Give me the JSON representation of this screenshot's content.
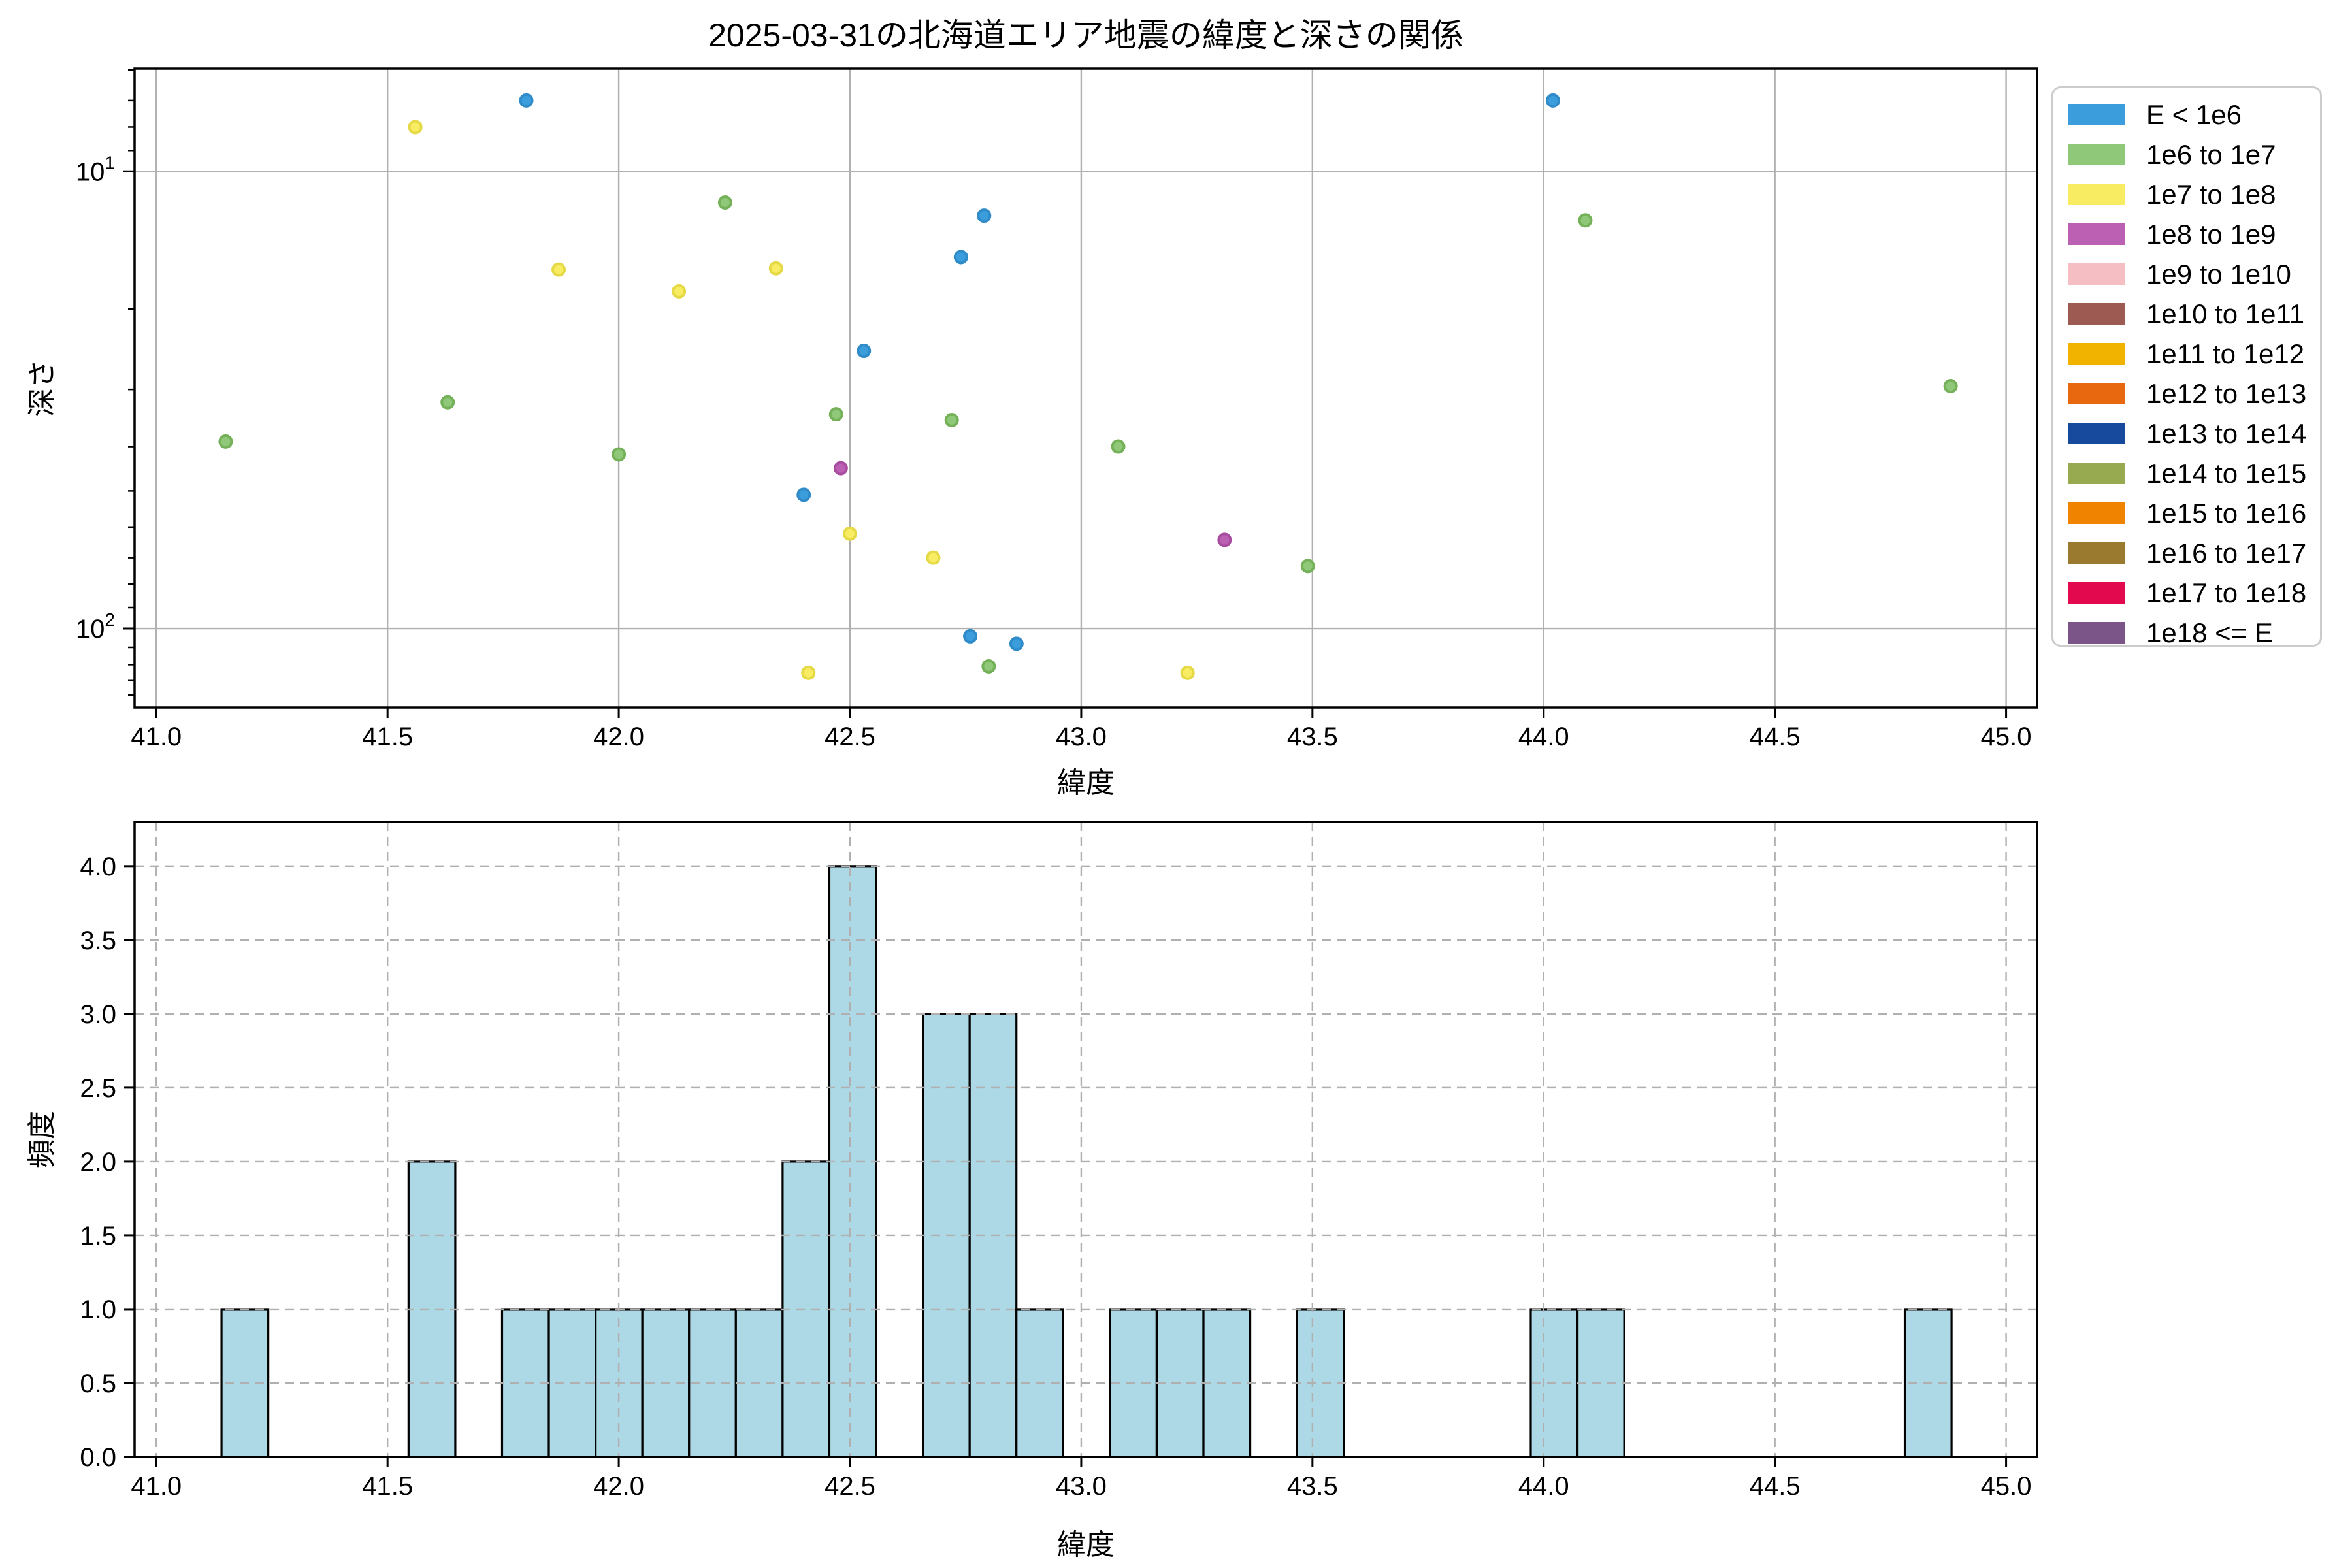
{
  "title": "2025-03-31の北海道エリア地震の緯度と深さの関係",
  "legend": {
    "entries": [
      {
        "label": "E < 1e6",
        "color": "#3b9ddb"
      },
      {
        "label": "1e6 to 1e7",
        "color": "#8fc878"
      },
      {
        "label": "1e7 to 1e8",
        "color": "#f8ed62"
      },
      {
        "label": "1e8 to 1e9",
        "color": "#bc60b4"
      },
      {
        "label": "1e9 to 1e10",
        "color": "#f5bec3"
      },
      {
        "label": "1e10 to 1e11",
        "color": "#9c5a52"
      },
      {
        "label": "1e11 to 1e12",
        "color": "#f2b200"
      },
      {
        "label": "1e12 to 1e13",
        "color": "#e8680f"
      },
      {
        "label": "1e13 to 1e14",
        "color": "#17499d"
      },
      {
        "label": "1e14 to 1e15",
        "color": "#97aa4f"
      },
      {
        "label": "1e15 to 1e16",
        "color": "#f08300"
      },
      {
        "label": "1e16 to 1e17",
        "color": "#9a7a2f"
      },
      {
        "label": "1e17 to 1e18",
        "color": "#e3094f"
      },
      {
        "label": "1e18 <= E",
        "color": "#7c5588"
      }
    ]
  },
  "chart_data": [
    {
      "type": "scatter",
      "xlabel": "緯度",
      "ylabel": "深さ",
      "x_scale": "linear",
      "y_scale": "log",
      "y_inverted": true,
      "xlim": [
        40.953,
        45.067
      ],
      "ylim": [
        5.96,
        148.9
      ],
      "grid": "solid-major",
      "x_ticks": [
        {
          "v": 41.0,
          "label": "41.0"
        },
        {
          "v": 41.5,
          "label": "41.5"
        },
        {
          "v": 42.0,
          "label": "42.0"
        },
        {
          "v": 42.5,
          "label": "42.5"
        },
        {
          "v": 43.0,
          "label": "43.0"
        },
        {
          "v": 43.5,
          "label": "43.5"
        },
        {
          "v": 44.0,
          "label": "44.0"
        },
        {
          "v": 44.5,
          "label": "44.5"
        },
        {
          "v": 45.0,
          "label": "45.0"
        }
      ],
      "y_major_ticks": [
        {
          "v": 10,
          "base": "10",
          "sup": "1"
        },
        {
          "v": 100,
          "base": "10",
          "sup": "2"
        }
      ],
      "y_minor_ticks": [
        6,
        7,
        8,
        9,
        20,
        30,
        40,
        50,
        60,
        70,
        80,
        90,
        110,
        120,
        130,
        140
      ],
      "series": [
        {
          "name": "E < 1e6",
          "color": "#3b9ddb",
          "edge": "#2f8cc9",
          "points": [
            [
              41.8,
              7.0
            ],
            [
              44.02,
              7.0
            ],
            [
              42.79,
              12.5
            ],
            [
              42.74,
              15.4
            ],
            [
              42.53,
              24.7
            ],
            [
              42.4,
              51
            ],
            [
              42.76,
              104
            ],
            [
              42.86,
              108
            ]
          ]
        },
        {
          "name": "1e6 to 1e7",
          "color": "#8fc878",
          "edge": "#74b159",
          "points": [
            [
              42.23,
              11.7
            ],
            [
              44.09,
              12.8
            ],
            [
              44.88,
              29.5
            ],
            [
              41.63,
              32
            ],
            [
              42.47,
              34
            ],
            [
              42.72,
              35
            ],
            [
              41.15,
              39
            ],
            [
              42.0,
              41.6
            ],
            [
              43.08,
              40
            ],
            [
              43.49,
              73
            ],
            [
              42.8,
              121
            ]
          ]
        },
        {
          "name": "1e7 to 1e8",
          "color": "#f8ed62",
          "edge": "#e5d945",
          "points": [
            [
              41.56,
              8.0
            ],
            [
              41.87,
              16.4
            ],
            [
              42.34,
              16.3
            ],
            [
              42.13,
              18.3
            ],
            [
              42.5,
              62
            ],
            [
              42.68,
              70
            ],
            [
              42.41,
              125
            ],
            [
              43.23,
              125
            ]
          ]
        },
        {
          "name": "1e8 to 1e9",
          "color": "#bc60b4",
          "edge": "#a84da0",
          "points": [
            [
              42.48,
              44.6
            ],
            [
              43.31,
              64
            ]
          ]
        }
      ]
    },
    {
      "type": "bar",
      "subtype": "histogram",
      "xlabel": "緯度",
      "ylabel": "頻度",
      "xlim": [
        40.953,
        45.067
      ],
      "ylim": [
        0,
        4.3
      ],
      "grid": "dashed",
      "bar_color": "#add8e6",
      "bar_edge": "#000000",
      "bin_start": 41.141,
      "bin_width": 0.10111,
      "counts": [
        1,
        0,
        0,
        0,
        2,
        0,
        1,
        1,
        1,
        1,
        1,
        1,
        2,
        4,
        0,
        3,
        3,
        1,
        0,
        1,
        1,
        1,
        0,
        1,
        0,
        0,
        0,
        0,
        1,
        1,
        0,
        0,
        0,
        0,
        0,
        0,
        1
      ],
      "x_ticks": [
        {
          "v": 41.0,
          "label": "41.0"
        },
        {
          "v": 41.5,
          "label": "41.5"
        },
        {
          "v": 42.0,
          "label": "42.0"
        },
        {
          "v": 42.5,
          "label": "42.5"
        },
        {
          "v": 43.0,
          "label": "43.0"
        },
        {
          "v": 43.5,
          "label": "43.5"
        },
        {
          "v": 44.0,
          "label": "44.0"
        },
        {
          "v": 44.5,
          "label": "44.5"
        },
        {
          "v": 45.0,
          "label": "45.0"
        }
      ],
      "y_ticks": [
        {
          "v": 0.0,
          "label": "0.0"
        },
        {
          "v": 0.5,
          "label": "0.5"
        },
        {
          "v": 1.0,
          "label": "1.0"
        },
        {
          "v": 1.5,
          "label": "1.5"
        },
        {
          "v": 2.0,
          "label": "2.0"
        },
        {
          "v": 2.5,
          "label": "2.5"
        },
        {
          "v": 3.0,
          "label": "3.0"
        },
        {
          "v": 3.5,
          "label": "3.5"
        },
        {
          "v": 4.0,
          "label": "4.0"
        }
      ]
    }
  ]
}
